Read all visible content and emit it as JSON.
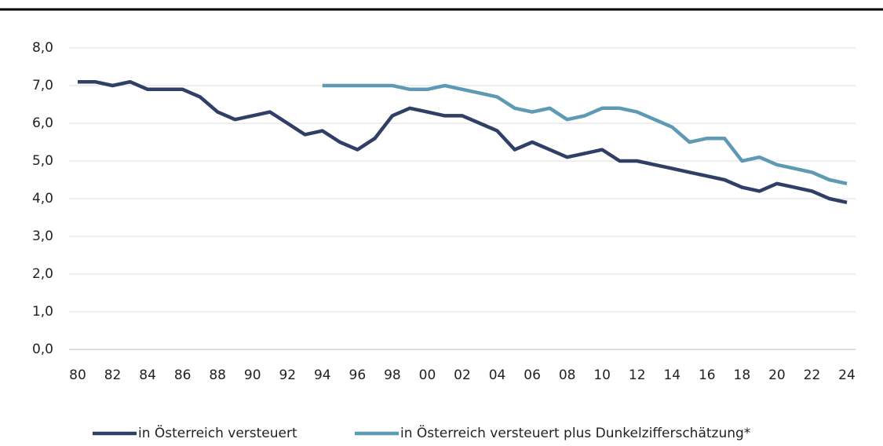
{
  "chart_data": {
    "type": "line",
    "categories": [
      "80",
      null,
      "82",
      null,
      "84",
      null,
      "86",
      null,
      "88",
      null,
      "90",
      null,
      "92",
      null,
      "94",
      null,
      "96",
      null,
      "98",
      null,
      "00",
      null,
      "02",
      null,
      "04",
      null,
      "06",
      null,
      "08",
      null,
      "10",
      null,
      "12",
      null,
      "14",
      null,
      "16",
      null,
      "18",
      null,
      "20",
      null,
      "22",
      null,
      "24"
    ],
    "series": [
      {
        "name": "in Österreich versteuert",
        "color": "#2f3f66",
        "values": [
          7.1,
          7.1,
          7.0,
          7.1,
          6.9,
          6.9,
          6.9,
          6.7,
          6.3,
          6.1,
          6.2,
          6.3,
          6.0,
          5.7,
          5.8,
          5.5,
          5.3,
          5.6,
          6.2,
          6.4,
          6.3,
          6.2,
          6.2,
          6.0,
          5.8,
          5.3,
          5.5,
          5.3,
          5.1,
          5.2,
          5.3,
          5.0,
          5.0,
          4.9,
          4.8,
          4.7,
          4.6,
          4.5,
          4.3,
          4.2,
          4.4,
          4.3,
          4.2,
          4.0,
          3.9
        ]
      },
      {
        "name": "in Österreich versteuert plus Dunkelzifferschätzung*",
        "color": "#5e9ab4",
        "values": [
          null,
          null,
          null,
          null,
          null,
          null,
          null,
          null,
          null,
          null,
          null,
          null,
          null,
          null,
          7.0,
          7.0,
          7.0,
          7.0,
          7.0,
          6.9,
          6.9,
          7.0,
          6.9,
          6.8,
          6.7,
          6.4,
          6.3,
          6.4,
          6.1,
          6.2,
          6.4,
          6.4,
          6.3,
          6.1,
          5.9,
          5.5,
          5.6,
          5.6,
          5.0,
          5.1,
          4.9,
          4.8,
          4.7,
          4.5,
          4.4
        ]
      }
    ],
    "ylim": [
      0,
      8
    ],
    "yticks": [
      {
        "value": 0,
        "label": "0,0"
      },
      {
        "value": 1,
        "label": "1,0"
      },
      {
        "value": 2,
        "label": "2,0"
      },
      {
        "value": 3,
        "label": "3,0"
      },
      {
        "value": 4,
        "label": "4,0"
      },
      {
        "value": 5,
        "label": "5,0"
      },
      {
        "value": 6,
        "label": "6,0"
      },
      {
        "value": 7,
        "label": "7,0"
      },
      {
        "value": 8,
        "label": "8,0"
      }
    ],
    "grid": true,
    "legend": "bottom"
  }
}
